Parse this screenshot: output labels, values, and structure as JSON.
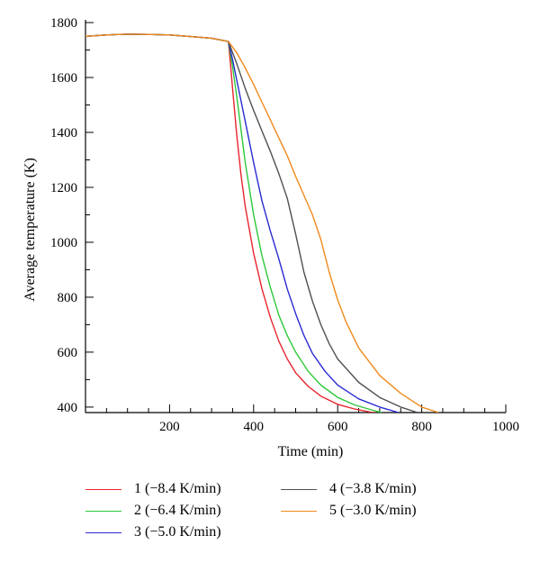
{
  "chart_data": {
    "type": "line",
    "xlabel": "Time (min)",
    "ylabel": "Average temperature (K)",
    "xlim": [
      0,
      1000
    ],
    "ylim": [
      380,
      1810
    ],
    "xticks": [
      200,
      400,
      600,
      800,
      1000
    ],
    "yticks": [
      400,
      600,
      800,
      1000,
      1200,
      1400,
      1600,
      1800
    ],
    "grid": false,
    "legend_position": "bottom",
    "series": [
      {
        "name": "1 (−8.4 K/min)",
        "color": "#e8242e",
        "points": [
          [
            0,
            1750
          ],
          [
            50,
            1755
          ],
          [
            100,
            1758
          ],
          [
            150,
            1757
          ],
          [
            200,
            1755
          ],
          [
            250,
            1749
          ],
          [
            300,
            1743
          ],
          [
            340,
            1731
          ],
          [
            345,
            1650
          ],
          [
            350,
            1560
          ],
          [
            360,
            1390
          ],
          [
            370,
            1245
          ],
          [
            380,
            1130
          ],
          [
            400,
            960
          ],
          [
            420,
            830
          ],
          [
            440,
            725
          ],
          [
            460,
            640
          ],
          [
            480,
            575
          ],
          [
            500,
            525
          ],
          [
            530,
            475
          ],
          [
            560,
            440
          ],
          [
            600,
            410
          ],
          [
            640,
            393
          ],
          [
            680,
            381
          ],
          [
            690,
            380
          ]
        ]
      },
      {
        "name": "2 (−6.4 K/min)",
        "color": "#2ec83a",
        "points": [
          [
            0,
            1750
          ],
          [
            50,
            1755
          ],
          [
            100,
            1758
          ],
          [
            150,
            1757
          ],
          [
            200,
            1755
          ],
          [
            250,
            1749
          ],
          [
            300,
            1743
          ],
          [
            340,
            1731
          ],
          [
            350,
            1640
          ],
          [
            360,
            1530
          ],
          [
            370,
            1410
          ],
          [
            380,
            1290
          ],
          [
            400,
            1100
          ],
          [
            420,
            950
          ],
          [
            440,
            835
          ],
          [
            460,
            735
          ],
          [
            480,
            660
          ],
          [
            500,
            600
          ],
          [
            530,
            530
          ],
          [
            560,
            480
          ],
          [
            600,
            435
          ],
          [
            640,
            408
          ],
          [
            680,
            390
          ],
          [
            705,
            380
          ]
        ]
      },
      {
        "name": "3 (−5.0 K/min)",
        "color": "#2a2ad4",
        "points": [
          [
            0,
            1750
          ],
          [
            50,
            1755
          ],
          [
            100,
            1758
          ],
          [
            150,
            1757
          ],
          [
            200,
            1755
          ],
          [
            250,
            1749
          ],
          [
            300,
            1743
          ],
          [
            340,
            1731
          ],
          [
            350,
            1665
          ],
          [
            360,
            1590
          ],
          [
            380,
            1440
          ],
          [
            400,
            1290
          ],
          [
            420,
            1150
          ],
          [
            440,
            1040
          ],
          [
            460,
            940
          ],
          [
            480,
            830
          ],
          [
            500,
            740
          ],
          [
            520,
            660
          ],
          [
            540,
            595
          ],
          [
            570,
            530
          ],
          [
            600,
            480
          ],
          [
            650,
            430
          ],
          [
            700,
            400
          ],
          [
            745,
            380
          ]
        ]
      },
      {
        "name": "4 (−3.8 K/min)",
        "color": "#505050",
        "points": [
          [
            0,
            1750
          ],
          [
            50,
            1755
          ],
          [
            100,
            1758
          ],
          [
            150,
            1757
          ],
          [
            200,
            1755
          ],
          [
            250,
            1749
          ],
          [
            300,
            1743
          ],
          [
            340,
            1731
          ],
          [
            360,
            1650
          ],
          [
            380,
            1560
          ],
          [
            400,
            1480
          ],
          [
            420,
            1405
          ],
          [
            440,
            1330
          ],
          [
            460,
            1250
          ],
          [
            480,
            1160
          ],
          [
            500,
            1030
          ],
          [
            520,
            890
          ],
          [
            540,
            785
          ],
          [
            560,
            700
          ],
          [
            580,
            630
          ],
          [
            600,
            575
          ],
          [
            650,
            490
          ],
          [
            700,
            435
          ],
          [
            750,
            400
          ],
          [
            790,
            380
          ]
        ]
      },
      {
        "name": "5 (−3.0 K/min)",
        "color": "#f08a1c",
        "points": [
          [
            0,
            1750
          ],
          [
            50,
            1755
          ],
          [
            100,
            1758
          ],
          [
            150,
            1757
          ],
          [
            200,
            1755
          ],
          [
            250,
            1749
          ],
          [
            300,
            1743
          ],
          [
            340,
            1731
          ],
          [
            360,
            1690
          ],
          [
            380,
            1635
          ],
          [
            400,
            1575
          ],
          [
            420,
            1510
          ],
          [
            440,
            1445
          ],
          [
            460,
            1380
          ],
          [
            480,
            1315
          ],
          [
            500,
            1240
          ],
          [
            520,
            1170
          ],
          [
            540,
            1100
          ],
          [
            560,
            1010
          ],
          [
            580,
            890
          ],
          [
            600,
            790
          ],
          [
            620,
            710
          ],
          [
            650,
            615
          ],
          [
            700,
            515
          ],
          [
            750,
            450
          ],
          [
            800,
            400
          ],
          [
            840,
            380
          ]
        ]
      }
    ]
  }
}
